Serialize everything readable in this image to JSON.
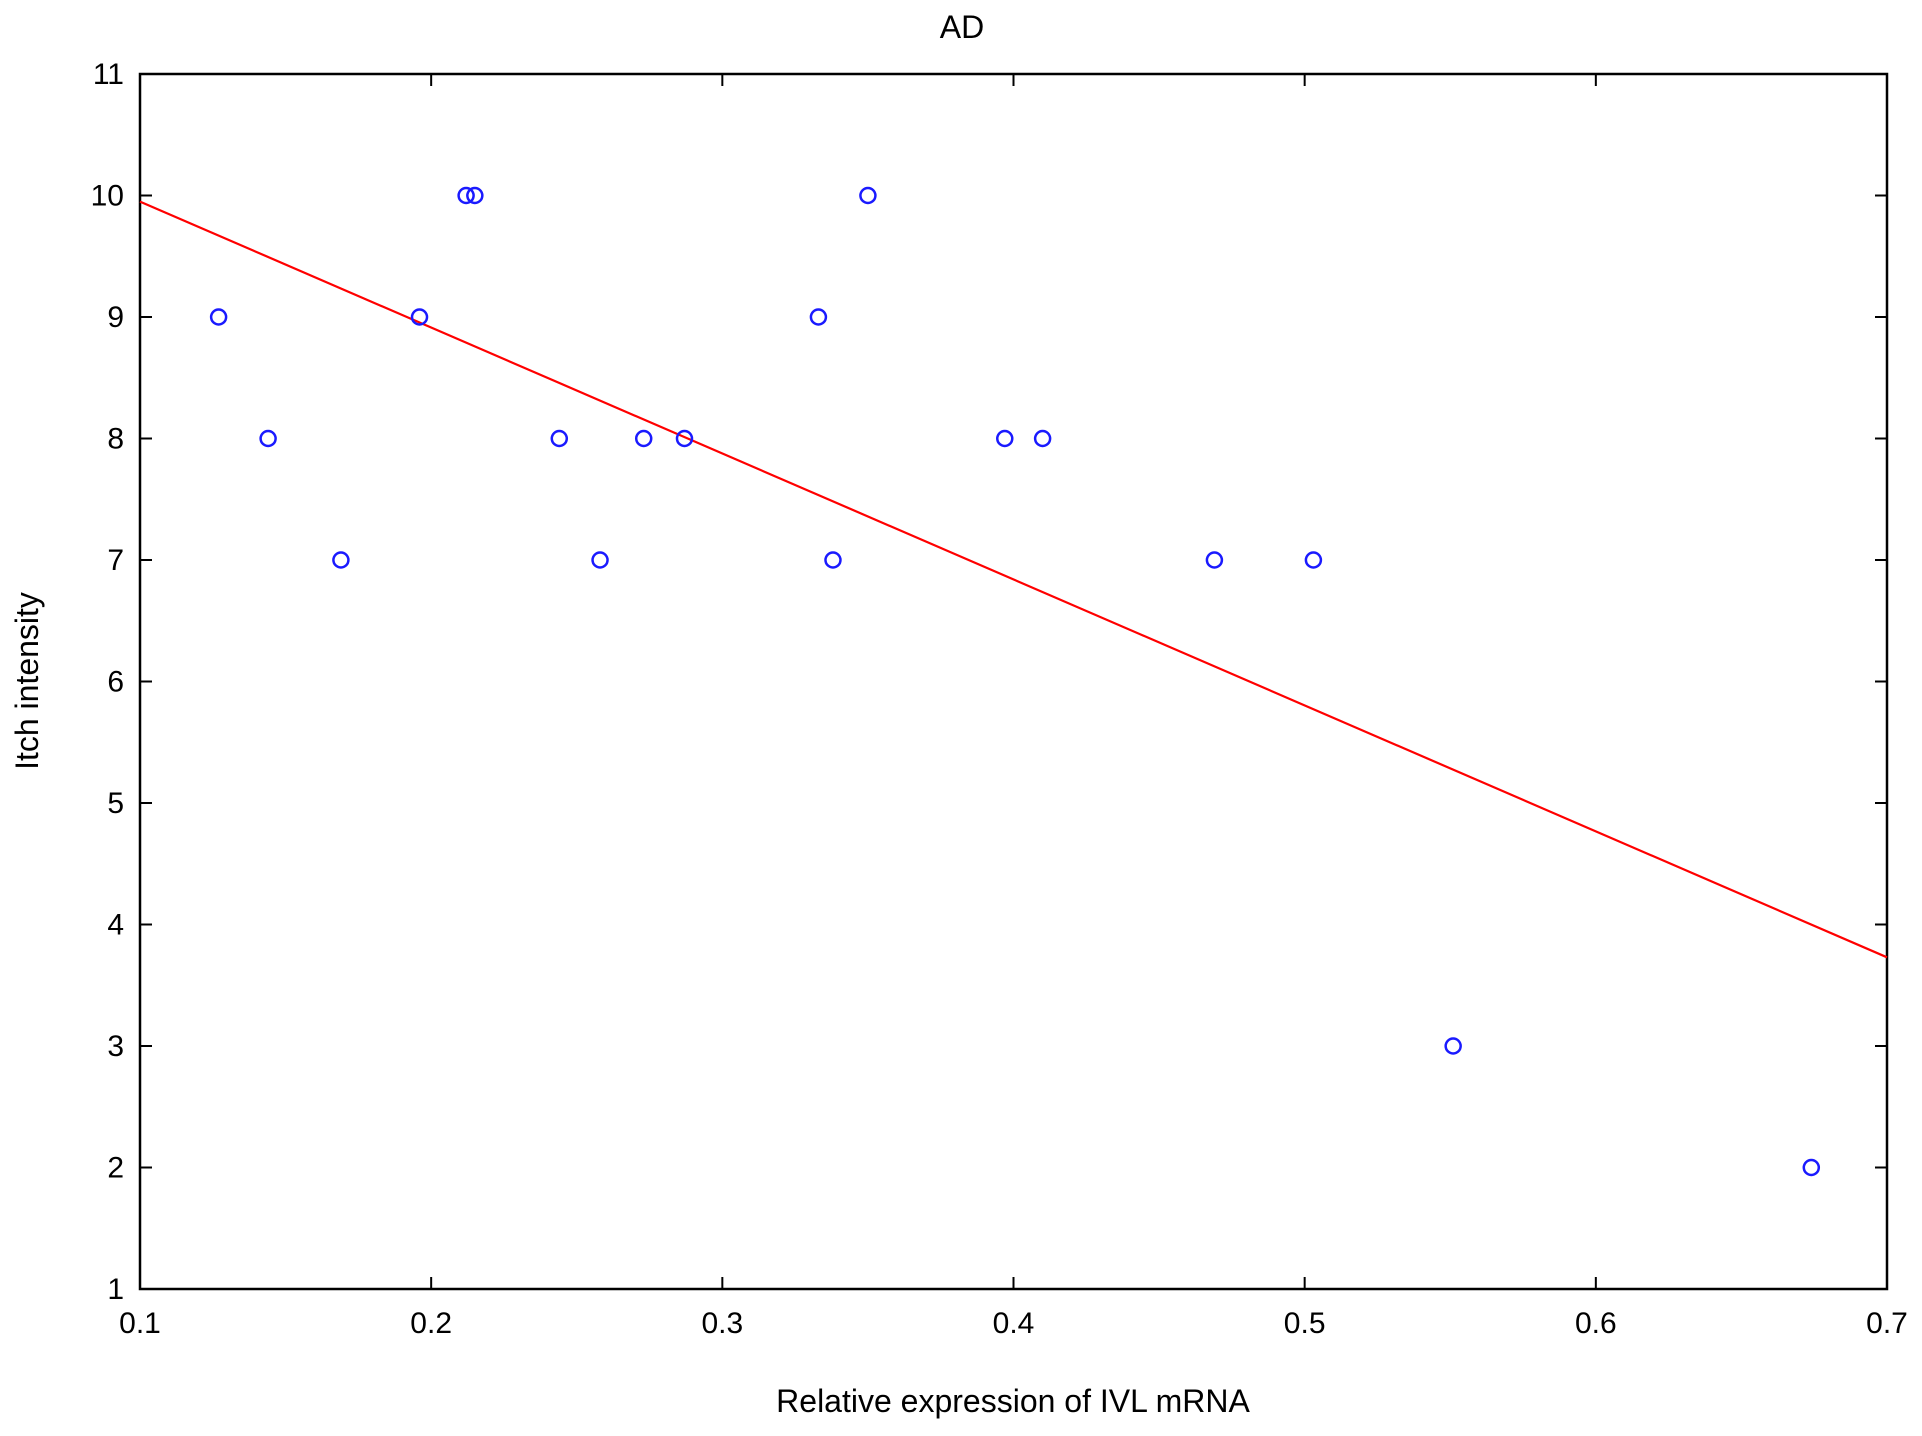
{
  "chart_data": {
    "type": "scatter",
    "title": "AD",
    "xlabel": "Relative expression of IVL mRNA",
    "ylabel": "Itch intensity",
    "xlim": [
      0.1,
      0.7
    ],
    "ylim": [
      1,
      11
    ],
    "x_ticks": [
      0.1,
      0.2,
      0.3,
      0.4,
      0.5,
      0.6,
      0.7
    ],
    "x_tick_labels": [
      "0.1",
      "0.2",
      "0.3",
      "0.4",
      "0.5",
      "0.6",
      "0.7"
    ],
    "y_ticks": [
      1,
      2,
      3,
      4,
      5,
      6,
      7,
      8,
      9,
      10,
      11
    ],
    "y_tick_labels": [
      "1",
      "2",
      "3",
      "4",
      "5",
      "6",
      "7",
      "8",
      "9",
      "10",
      "11"
    ],
    "grid": false,
    "legend": false,
    "series": [
      {
        "marker": "open-circle",
        "color": "#1a1aff",
        "points": [
          {
            "x": 0.127,
            "y": 9
          },
          {
            "x": 0.144,
            "y": 8
          },
          {
            "x": 0.169,
            "y": 7
          },
          {
            "x": 0.196,
            "y": 9
          },
          {
            "x": 0.212,
            "y": 10
          },
          {
            "x": 0.215,
            "y": 10
          },
          {
            "x": 0.244,
            "y": 8
          },
          {
            "x": 0.258,
            "y": 7
          },
          {
            "x": 0.273,
            "y": 8
          },
          {
            "x": 0.287,
            "y": 8
          },
          {
            "x": 0.333,
            "y": 9
          },
          {
            "x": 0.338,
            "y": 7
          },
          {
            "x": 0.35,
            "y": 10
          },
          {
            "x": 0.397,
            "y": 8
          },
          {
            "x": 0.41,
            "y": 8
          },
          {
            "x": 0.469,
            "y": 7
          },
          {
            "x": 0.503,
            "y": 7
          },
          {
            "x": 0.551,
            "y": 3
          },
          {
            "x": 0.674,
            "y": 2
          }
        ]
      }
    ],
    "fit_line": {
      "color": "#ff0000",
      "x": [
        0.1,
        0.7
      ],
      "y": [
        9.95,
        3.73
      ]
    }
  }
}
